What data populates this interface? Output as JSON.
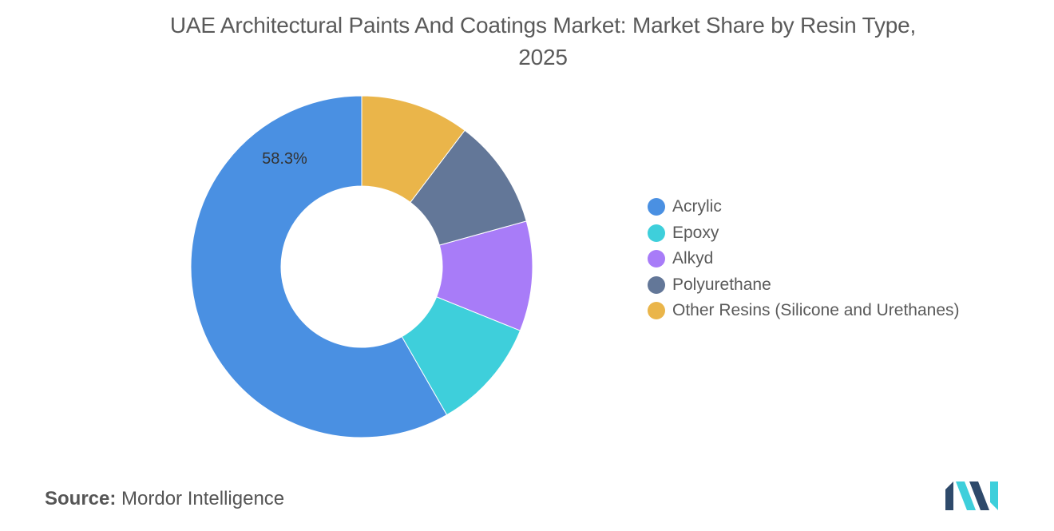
{
  "title_line1": "UAE Architectural Paints And Coatings Market: Market Share by Resin Type,",
  "title_line2": "2025",
  "chart_data": {
    "type": "pie",
    "variant": "donut",
    "title": "UAE Architectural Paints And Coatings Market: Market Share by Resin Type, 2025",
    "categories": [
      "Acrylic",
      "Epoxy",
      "Alkyd",
      "Polyurethane",
      "Other Resins (Silicone and Urethanes)"
    ],
    "values": [
      58.3,
      10.6,
      10.4,
      10.4,
      10.3
    ],
    "data_labels": [
      "58.3%",
      "",
      "",
      "",
      ""
    ],
    "colors": [
      "#4a90e2",
      "#3ecfdb",
      "#a87cf8",
      "#637798",
      "#eab54a"
    ],
    "start_angle_deg": 90,
    "direction": "counterclockwise",
    "legend_position": "right"
  },
  "legend": {
    "items": [
      {
        "label": "Acrylic",
        "color": "#4a90e2"
      },
      {
        "label": "Epoxy",
        "color": "#3ecfdb"
      },
      {
        "label": "Alkyd",
        "color": "#a87cf8"
      },
      {
        "label": "Polyurethane",
        "color": "#637798"
      },
      {
        "label": "Other Resins (Silicone and Urethanes)",
        "color": "#eab54a"
      }
    ]
  },
  "source": {
    "key": "Source:",
    "value": "Mordor Intelligence"
  },
  "logo": {
    "icon": "mordor-intelligence-logo-icon",
    "colors": [
      "#2e4a6b",
      "#3ecfdb"
    ]
  }
}
